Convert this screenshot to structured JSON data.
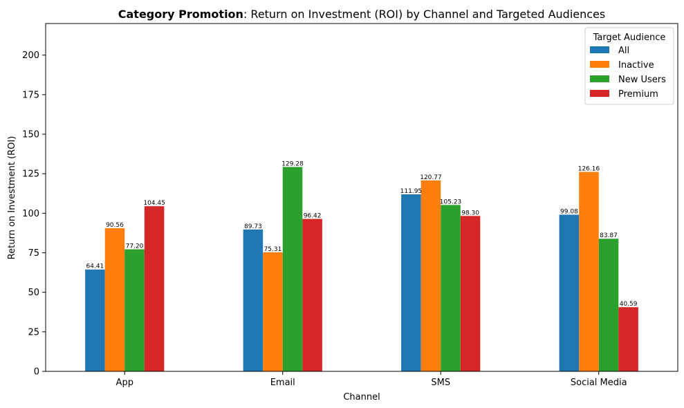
{
  "chart_data": {
    "type": "bar",
    "title_bold": "Category Promotion",
    "title_rest": ": Return on Investment (ROI) by Channel and Targeted Audiences",
    "xlabel": "Channel",
    "ylabel": "Return on Investment (ROI)",
    "categories": [
      "App",
      "Email",
      "SMS",
      "Social Media"
    ],
    "series": [
      {
        "name": "All",
        "color": "#1f77b4",
        "values": [
          64.41,
          89.73,
          111.95,
          99.08
        ]
      },
      {
        "name": "Inactive",
        "color": "#ff7f0e",
        "values": [
          90.56,
          75.31,
          120.77,
          126.16
        ]
      },
      {
        "name": "New Users",
        "color": "#2ca02c",
        "values": [
          77.2,
          129.28,
          105.23,
          83.87
        ]
      },
      {
        "name": "Premium",
        "color": "#d62728",
        "values": [
          104.45,
          96.42,
          98.3,
          40.59
        ]
      }
    ],
    "value_labels": [
      [
        "64.41",
        "89.73",
        "111.95",
        "99.08"
      ],
      [
        "90.56",
        "75.31",
        "120.77",
        "126.16"
      ],
      [
        "77.20",
        "129.28",
        "105.23",
        "83.87"
      ],
      [
        "104.45",
        "96.42",
        "98.30",
        "40.59"
      ]
    ],
    "ylim": [
      0,
      220
    ],
    "yticks": [
      0,
      25,
      50,
      75,
      100,
      125,
      150,
      175,
      200
    ],
    "grid": false,
    "legend_title": "Target Audience",
    "legend_position": "top-right"
  }
}
